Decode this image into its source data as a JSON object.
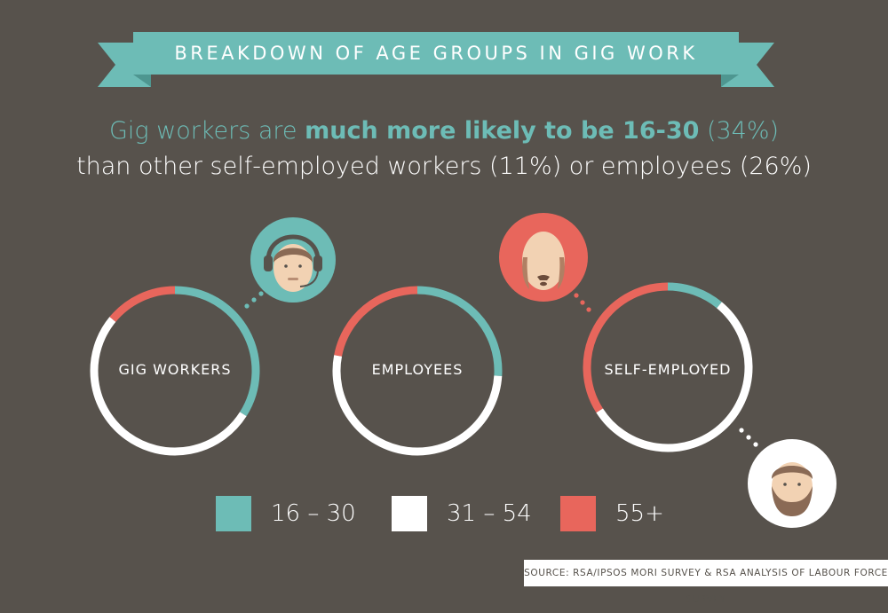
{
  "title": "BREAKDOWN OF AGE GROUPS IN GIG WORK",
  "headline": {
    "line1_prefix": "Gig workers are ",
    "line1_bold": "much more likely to be 16-30",
    "line1_suffix": " (34%)",
    "line2": "than other self-employed workers (11%) or employees (26%)"
  },
  "colors": {
    "background": "#57524c",
    "age_16_30": "#6dbcb6",
    "age_31_54": "#ffffff",
    "age_55_plus": "#e8665c",
    "banner": "#6dbcb6",
    "banner_dark": "#4e9690"
  },
  "chart_data": {
    "type": "pie",
    "style": "donut",
    "categories": [
      "16 – 30",
      "31 – 54",
      "55+"
    ],
    "series": [
      {
        "name": "GIG WORKERS",
        "values": [
          34,
          52,
          14
        ],
        "avatar": "headphones-person-icon"
      },
      {
        "name": "EMPLOYEES",
        "values": [
          26,
          52,
          22
        ],
        "avatar": "bald-person-icon"
      },
      {
        "name": "SELF-EMPLOYED",
        "values": [
          11,
          55,
          34
        ],
        "avatar": "bearded-person-icon"
      }
    ],
    "legend": [
      {
        "label": "16 – 30",
        "color": "#6dbcb6"
      },
      {
        "label": "31 – 54",
        "color": "#ffffff"
      },
      {
        "label": "55+",
        "color": "#e8665c"
      }
    ],
    "legend_position": "bottom"
  },
  "source": "SOURCE: RSA/IPSOS MORI SURVEY & RSA ANALYSIS OF LABOUR FORCE SURVEY"
}
